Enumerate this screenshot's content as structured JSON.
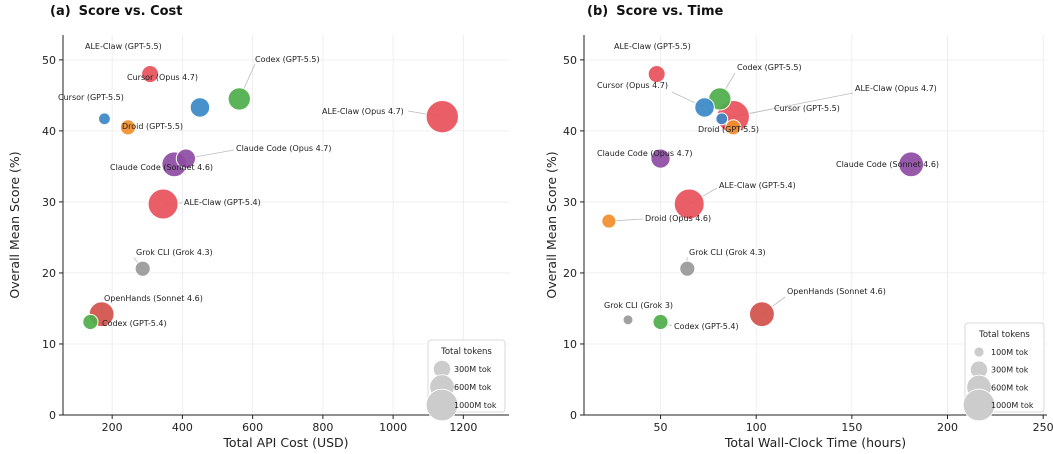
{
  "chart_data": [
    {
      "type": "scatter",
      "panel_label": "(a)",
      "title": "Score vs. Cost",
      "xlabel": "Total API Cost (USD)",
      "ylabel": "Overall Mean Score (%)",
      "xlim": [
        60,
        1330
      ],
      "ylim": [
        0,
        53.5
      ],
      "xticks": [
        200,
        400,
        600,
        800,
        1000,
        1200
      ],
      "yticks": [
        0,
        10,
        20,
        30,
        40,
        50
      ],
      "grid": true,
      "legend": {
        "title": "Total tokens",
        "placement": "bottom-right",
        "entries": [
          {
            "label": "300M tok",
            "tokens_m": 300
          },
          {
            "label": "600M tok",
            "tokens_m": 600
          },
          {
            "label": "1000M tok",
            "tokens_m": 1000
          }
        ]
      },
      "points": [
        {
          "label": "ALE-Claw (GPT-5.5)",
          "x": 308,
          "y": 48.0,
          "tokens_m": 290,
          "color": "#e8505b"
        },
        {
          "label": "Codex (GPT-5.5)",
          "x": 562,
          "y": 44.5,
          "tokens_m": 500,
          "color": "#4daf4a"
        },
        {
          "label": "Cursor (Opus 4.7)",
          "x": 450,
          "y": 43.3,
          "tokens_m": 380,
          "color": "#3a88c5"
        },
        {
          "label": "Cursor (GPT-5.5)",
          "x": 178,
          "y": 41.7,
          "tokens_m": 140,
          "color": "#3a88c5"
        },
        {
          "label": "ALE-Claw (Opus 4.7)",
          "x": 1140,
          "y": 42.0,
          "tokens_m": 1050,
          "color": "#e8505b"
        },
        {
          "label": "Droid (GPT-5.5)",
          "x": 245,
          "y": 40.5,
          "tokens_m": 230,
          "color": "#f28e2b"
        },
        {
          "label": "Claude Code (Opus 4.7)",
          "x": 410,
          "y": 36.1,
          "tokens_m": 370,
          "color": "#8e4ba3"
        },
        {
          "label": "Claude Code (Sonnet 4.6)",
          "x": 377,
          "y": 35.3,
          "tokens_m": 620,
          "color": "#8e4ba3"
        },
        {
          "label": "ALE-Claw (GPT-5.4)",
          "x": 345,
          "y": 29.7,
          "tokens_m": 900,
          "color": "#e8505b"
        },
        {
          "label": "Grok CLI (Grok 4.3)",
          "x": 287,
          "y": 20.6,
          "tokens_m": 230,
          "color": "#999999"
        },
        {
          "label": "OpenHands (Sonnet 4.6)",
          "x": 170,
          "y": 14.2,
          "tokens_m": 620,
          "color": "#d1504a"
        },
        {
          "label": "Codex (GPT-5.4)",
          "x": 138,
          "y": 13.1,
          "tokens_m": 230,
          "color": "#4daf4a"
        }
      ]
    },
    {
      "type": "scatter",
      "panel_label": "(b)",
      "title": "Score vs. Time",
      "xlabel": "Total Wall-Clock Time (hours)",
      "ylabel": "Overall Mean Score (%)",
      "xlim": [
        10,
        252
      ],
      "ylim": [
        0,
        53.5
      ],
      "xticks": [
        50,
        100,
        150,
        200,
        250
      ],
      "yticks": [
        0,
        10,
        20,
        30,
        40,
        50
      ],
      "grid": true,
      "legend": {
        "title": "Total tokens",
        "placement": "bottom-right",
        "entries": [
          {
            "label": "100M tok",
            "tokens_m": 100
          },
          {
            "label": "300M tok",
            "tokens_m": 300
          },
          {
            "label": "600M tok",
            "tokens_m": 600
          },
          {
            "label": "1000M tok",
            "tokens_m": 1000
          }
        ]
      },
      "points": [
        {
          "label": "ALE-Claw (GPT-5.5)",
          "x": 48,
          "y": 48.0,
          "tokens_m": 290,
          "color": "#e8505b"
        },
        {
          "label": "Codex (GPT-5.5)",
          "x": 81,
          "y": 44.5,
          "tokens_m": 500,
          "color": "#4daf4a"
        },
        {
          "label": "Cursor (Opus 4.7)",
          "x": 73,
          "y": 43.3,
          "tokens_m": 380,
          "color": "#3a88c5"
        },
        {
          "label": "ALE-Claw (Opus 4.7)",
          "x": 88,
          "y": 42.0,
          "tokens_m": 1050,
          "color": "#e8505b"
        },
        {
          "label": "Cursor (GPT-5.5)",
          "x": 82,
          "y": 41.7,
          "tokens_m": 140,
          "color": "#3a88c5"
        },
        {
          "label": "Droid (GPT-5.5)",
          "x": 88,
          "y": 40.5,
          "tokens_m": 230,
          "color": "#f28e2b"
        },
        {
          "label": "Claude Code (Opus 4.7)",
          "x": 50,
          "y": 36.1,
          "tokens_m": 370,
          "color": "#8e4ba3"
        },
        {
          "label": "Claude Code (Sonnet 4.6)",
          "x": 181,
          "y": 35.3,
          "tokens_m": 620,
          "color": "#8e4ba3"
        },
        {
          "label": "ALE-Claw (GPT-5.4)",
          "x": 65,
          "y": 29.7,
          "tokens_m": 900,
          "color": "#e8505b"
        },
        {
          "label": "Droid (Opus 4.6)",
          "x": 23,
          "y": 27.3,
          "tokens_m": 200,
          "color": "#f28e2b"
        },
        {
          "label": "Grok CLI (Grok 4.3)",
          "x": 64,
          "y": 20.6,
          "tokens_m": 230,
          "color": "#999999"
        },
        {
          "label": "OpenHands (Sonnet 4.6)",
          "x": 103,
          "y": 14.2,
          "tokens_m": 620,
          "color": "#d1504a"
        },
        {
          "label": "Grok CLI (Grok 3)",
          "x": 33,
          "y": 13.4,
          "tokens_m": 100,
          "color": "#999999"
        },
        {
          "label": "Codex (GPT-5.4)",
          "x": 50,
          "y": 13.1,
          "tokens_m": 230,
          "color": "#4daf4a"
        }
      ]
    }
  ]
}
